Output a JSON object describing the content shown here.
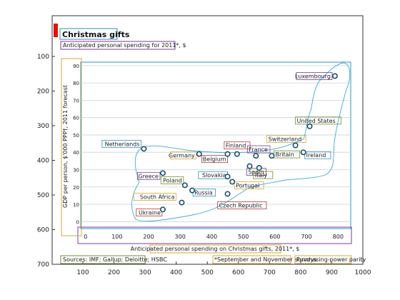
{
  "title": "Christmas gifts",
  "subtitle": "Anticipated personal spending for 2011*, $",
  "source": "Sources: IMF; Gallup; Deloitte; HSBC",
  "footnote1": "*September and November surveys",
  "footnote2": "Purchasing-power parity",
  "colors": {
    "accent": "#e3120b",
    "marker": "#1d4f6a",
    "frame": "#4aa8d8"
  },
  "chart_data": {
    "type": "scatter",
    "xlabel": "Anticipated personal spending on Christmas gifts, 2011*, $",
    "ylabel": "GDP per person, $'000 PPP†, 2011 forecast",
    "xlim": [
      -15,
      840
    ],
    "ylim": [
      -4,
      92
    ],
    "xticks": [
      0,
      100,
      200,
      300,
      400,
      500,
      600,
      700,
      800
    ],
    "yticks": [
      0,
      10,
      20,
      30,
      40,
      50,
      60,
      70,
      80,
      90
    ],
    "grid": true,
    "points": [
      {
        "label": "Luxembourg",
        "x": 790,
        "y": 84
      },
      {
        "label": "United States",
        "x": 710,
        "y": 55
      },
      {
        "label": "Netherlands",
        "x": 185,
        "y": 42
      },
      {
        "label": "Switzerland",
        "x": 665,
        "y": 44
      },
      {
        "label": "Finland",
        "x": 480,
        "y": 39
      },
      {
        "label": "France",
        "x": 540,
        "y": 38
      },
      {
        "label": "Britain",
        "x": 590,
        "y": 38
      },
      {
        "label": "Ireland",
        "x": 690,
        "y": 40
      },
      {
        "label": "Germany",
        "x": 360,
        "y": 39
      },
      {
        "label": "Belgium",
        "x": 450,
        "y": 39
      },
      {
        "label": "Spain",
        "x": 520,
        "y": 32
      },
      {
        "label": "Italy",
        "x": 550,
        "y": 31
      },
      {
        "label": "Slovakia",
        "x": 450,
        "y": 26
      },
      {
        "label": "Portugal",
        "x": 465,
        "y": 23
      },
      {
        "label": "Czech Republic",
        "x": 450,
        "y": 16
      },
      {
        "label": "Greece",
        "x": 245,
        "y": 28
      },
      {
        "label": "Poland",
        "x": 315,
        "y": 21
      },
      {
        "label": "Russia",
        "x": 338,
        "y": 18
      },
      {
        "label": "South Africa",
        "x": 305,
        "y": 11
      },
      {
        "label": "Ukraine",
        "x": 245,
        "y": 7
      }
    ]
  }
}
